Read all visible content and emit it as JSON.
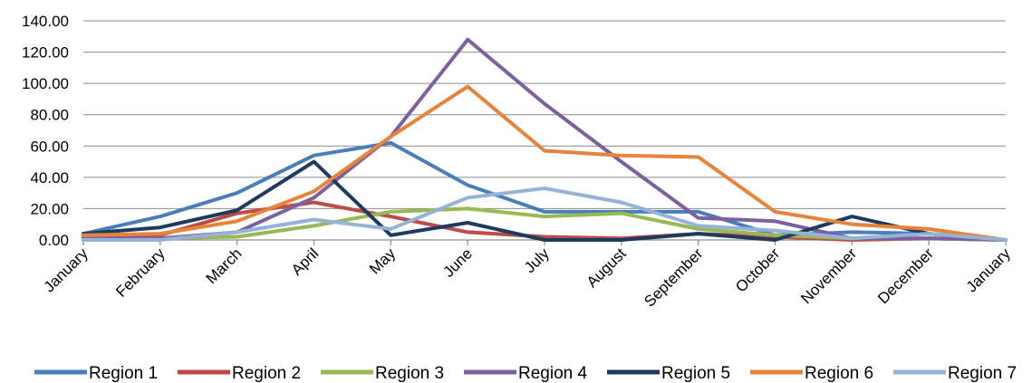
{
  "chart_data": {
    "type": "line",
    "categories": [
      "January",
      "February",
      "March",
      "April",
      "May",
      "June",
      "July",
      "August",
      "September",
      "October",
      "November",
      "December",
      "January"
    ],
    "ylim": [
      0,
      140
    ],
    "yticks": [
      "0.00",
      "20.00",
      "40.00",
      "60.00",
      "80.00",
      "100.00",
      "120.00",
      "140.00"
    ],
    "grid": true,
    "legend_position": "bottom",
    "series": [
      {
        "name": "Region 1",
        "color": "#4a7ebb",
        "values": [
          4,
          15,
          30,
          54,
          62,
          35,
          18,
          18,
          18,
          3,
          5,
          4,
          0
        ]
      },
      {
        "name": "Region 2",
        "color": "#be4b48",
        "values": [
          2,
          3,
          17,
          24,
          15,
          5,
          2,
          1,
          4,
          2,
          0,
          1,
          0
        ]
      },
      {
        "name": "Region 3",
        "color": "#98b954",
        "values": [
          0,
          1,
          2,
          9,
          18,
          20,
          15,
          17,
          7,
          3,
          1,
          1,
          0
        ]
      },
      {
        "name": "Region 4",
        "color": "#7d60a0",
        "values": [
          1,
          1,
          5,
          27,
          66,
          128,
          87,
          50,
          14,
          12,
          1,
          1,
          0
        ]
      },
      {
        "name": "Region 5",
        "color": "#1f3a5f",
        "values": [
          4,
          8,
          19,
          50,
          3,
          11,
          0,
          0,
          4,
          0,
          15,
          4,
          0
        ]
      },
      {
        "name": "Region 6",
        "color": "#e8833a",
        "values": [
          3,
          4,
          12,
          31,
          66,
          98,
          57,
          54,
          53,
          18,
          10,
          7,
          0
        ]
      },
      {
        "name": "Region 7",
        "color": "#95b3d7",
        "values": [
          0,
          0,
          5,
          13,
          7,
          27,
          33,
          24,
          9,
          6,
          1,
          4,
          0
        ]
      }
    ]
  }
}
